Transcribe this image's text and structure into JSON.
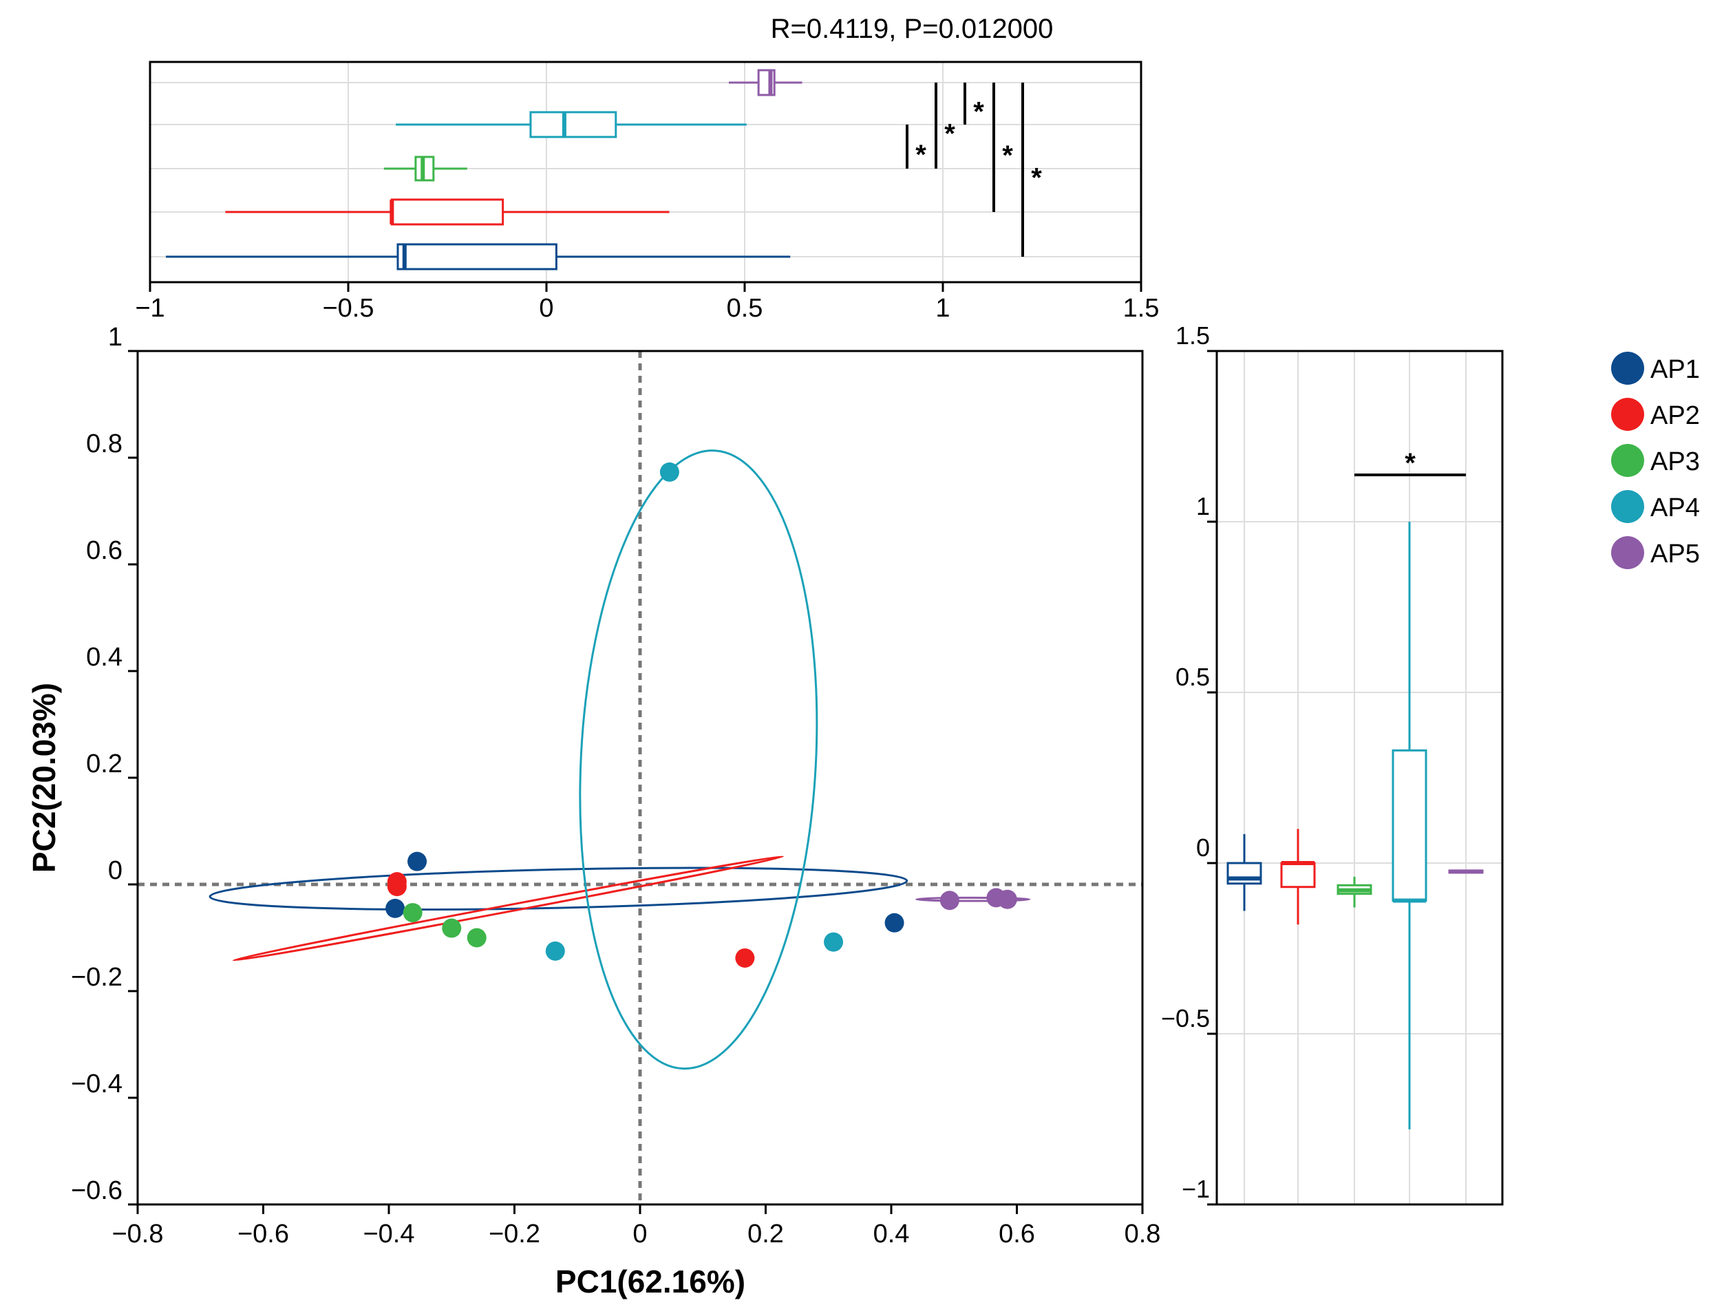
{
  "chart_data": [
    {
      "type": "scatter",
      "panel": "pcoa",
      "xlabel": "PC1(62.16%)",
      "ylabel": "PC2(20.03%)",
      "xlim": [
        -0.8,
        0.8
      ],
      "ylim": [
        -0.6,
        1.0
      ],
      "xticks": [
        {
          "v": -0.8,
          "label": "−0.8"
        },
        {
          "v": -0.6,
          "label": "−0.6"
        },
        {
          "v": -0.4,
          "label": "−0.4"
        },
        {
          "v": -0.2,
          "label": "−0.2"
        },
        {
          "v": 0,
          "label": "0"
        },
        {
          "v": 0.2,
          "label": "0.2"
        },
        {
          "v": 0.4,
          "label": "0.4"
        },
        {
          "v": 0.6,
          "label": "0.6"
        },
        {
          "v": 0.8,
          "label": "0.8"
        }
      ],
      "yticks": [
        {
          "v": -0.6,
          "label": "−0.6"
        },
        {
          "v": -0.4,
          "label": "−0.4"
        },
        {
          "v": -0.2,
          "label": "−0.2"
        },
        {
          "v": 0,
          "label": "0"
        },
        {
          "v": 0.2,
          "label": "0.2"
        },
        {
          "v": 0.4,
          "label": "0.4"
        },
        {
          "v": 0.6,
          "label": "0.6"
        },
        {
          "v": 0.8,
          "label": "0.8"
        },
        {
          "v": 1,
          "label": "1"
        }
      ],
      "reference_lines": {
        "x": 0,
        "y": 0
      },
      "series": [
        {
          "name": "AP1",
          "color": "#0c4a8c",
          "points": [
            [
              -0.355,
              0.043
            ],
            [
              -0.39,
              -0.045
            ],
            [
              0.405,
              -0.072
            ]
          ],
          "ellipse": {
            "center": [
              -0.13,
              -0.008
            ],
            "rx": 0.555,
            "ry": 0.036,
            "angle_deg": -1.3
          }
        },
        {
          "name": "AP2",
          "color": "#ef1e1e",
          "points": [
            [
              -0.387,
              -0.004
            ],
            [
              -0.387,
              0.005
            ],
            [
              0.167,
              -0.138
            ]
          ],
          "ellipse": {
            "center": [
              -0.21,
              -0.045
            ],
            "rx": 0.445,
            "ry": 0.006,
            "angle_deg": -10.7
          }
        },
        {
          "name": "AP3",
          "color": "#3db54a",
          "points": [
            [
              -0.362,
              -0.053
            ],
            [
              -0.3,
              -0.082
            ],
            [
              -0.26,
              -0.1
            ]
          ],
          "ellipse": null
        },
        {
          "name": "AP4",
          "color": "#1ba1b8",
          "points": [
            [
              0.047,
              0.773
            ],
            [
              -0.135,
              -0.125
            ],
            [
              0.308,
              -0.108
            ]
          ],
          "ellipse": {
            "center": [
              0.093,
              0.234
            ],
            "rx": 0.187,
            "ry": 0.58,
            "angle_deg": 3
          }
        },
        {
          "name": "AP5",
          "color": "#8e5ba6",
          "points": [
            [
              0.493,
              -0.03
            ],
            [
              0.567,
              -0.025
            ],
            [
              0.585,
              -0.028
            ]
          ],
          "ellipse": {
            "center": [
              0.53,
              -0.028
            ],
            "rx": 0.09,
            "ry": 0.003,
            "angle_deg": 0
          }
        }
      ]
    },
    {
      "type": "boxplot",
      "panel": "top",
      "orientation": "horizontal",
      "title": "R=0.4119, P=0.012000",
      "xlim": [
        -1,
        1.5
      ],
      "xticks": [
        {
          "v": -1,
          "label": "−1"
        },
        {
          "v": -0.5,
          "label": "−0.5"
        },
        {
          "v": 0,
          "label": "0"
        },
        {
          "v": 0.5,
          "label": "0.5"
        },
        {
          "v": 1,
          "label": "1"
        },
        {
          "v": 1.5,
          "label": "1.5"
        }
      ],
      "boxes": [
        {
          "name": "AP1",
          "color": "#0c4a8c",
          "whisker_low": -0.96,
          "q1": -0.375,
          "median": -0.358,
          "q3": 0.025,
          "whisker_high": 0.615
        },
        {
          "name": "AP2",
          "color": "#ef1e1e",
          "whisker_low": -0.81,
          "q1": -0.39,
          "median": -0.39,
          "q3": -0.11,
          "whisker_high": 0.31
        },
        {
          "name": "AP3",
          "color": "#3db54a",
          "whisker_low": -0.41,
          "q1": -0.33,
          "median": -0.312,
          "q3": -0.285,
          "whisker_high": -0.2
        },
        {
          "name": "AP4",
          "color": "#1ba1b8",
          "whisker_low": -0.38,
          "q1": -0.04,
          "median": 0.045,
          "q3": 0.175,
          "whisker_high": 0.505
        },
        {
          "name": "AP5",
          "color": "#8e5ba6",
          "whisker_low": 0.46,
          "q1": 0.535,
          "median": 0.565,
          "q3": 0.575,
          "whisker_high": 0.645
        }
      ],
      "significance": [
        {
          "groups": [
            "AP3",
            "AP4"
          ],
          "label": "*"
        },
        {
          "groups": [
            "AP3",
            "AP5"
          ],
          "label": "*"
        },
        {
          "groups": [
            "AP4",
            "AP5"
          ],
          "label": "*"
        },
        {
          "groups": [
            "AP2",
            "AP5"
          ],
          "label": "*"
        },
        {
          "groups": [
            "AP1",
            "AP5"
          ],
          "label": "*"
        }
      ]
    },
    {
      "type": "boxplot",
      "panel": "right",
      "orientation": "vertical",
      "ylim": [
        -1,
        1.5
      ],
      "yticks": [
        {
          "v": -1,
          "label": "−1"
        },
        {
          "v": -0.5,
          "label": "−0.5"
        },
        {
          "v": 0,
          "label": "0"
        },
        {
          "v": 0.5,
          "label": "0.5"
        },
        {
          "v": 1,
          "label": "1"
        },
        {
          "v": 1.5,
          "label": "1.5"
        }
      ],
      "boxes": [
        {
          "name": "AP1",
          "color": "#0c4a8c",
          "whisker_low": -0.14,
          "q1": -0.06,
          "median": -0.045,
          "q3": 0.0,
          "whisker_high": 0.085
        },
        {
          "name": "AP2",
          "color": "#ef1e1e",
          "whisker_low": -0.18,
          "q1": -0.07,
          "median": 0.0,
          "q3": 0.0,
          "whisker_high": 0.1
        },
        {
          "name": "AP3",
          "color": "#3db54a",
          "whisker_low": -0.13,
          "q1": -0.09,
          "median": -0.08,
          "q3": -0.065,
          "whisker_high": -0.04
        },
        {
          "name": "AP4",
          "color": "#1ba1b8",
          "whisker_low": -0.78,
          "q1": -0.11,
          "median": -0.11,
          "q3": 0.33,
          "whisker_high": 1.0
        },
        {
          "name": "AP5",
          "color": "#8e5ba6",
          "whisker_low": -0.028,
          "q1": -0.028,
          "median": -0.025,
          "q3": -0.022,
          "whisker_high": -0.022
        }
      ],
      "significance": [
        {
          "groups": [
            "AP3",
            "AP5"
          ],
          "label": "*"
        }
      ]
    }
  ],
  "legend": [
    {
      "label": "AP1",
      "color": "#0c4a8c"
    },
    {
      "label": "AP2",
      "color": "#ef1e1e"
    },
    {
      "label": "AP3",
      "color": "#3db54a"
    },
    {
      "label": "AP4",
      "color": "#1ba1b8"
    },
    {
      "label": "AP5",
      "color": "#8e5ba6"
    }
  ]
}
